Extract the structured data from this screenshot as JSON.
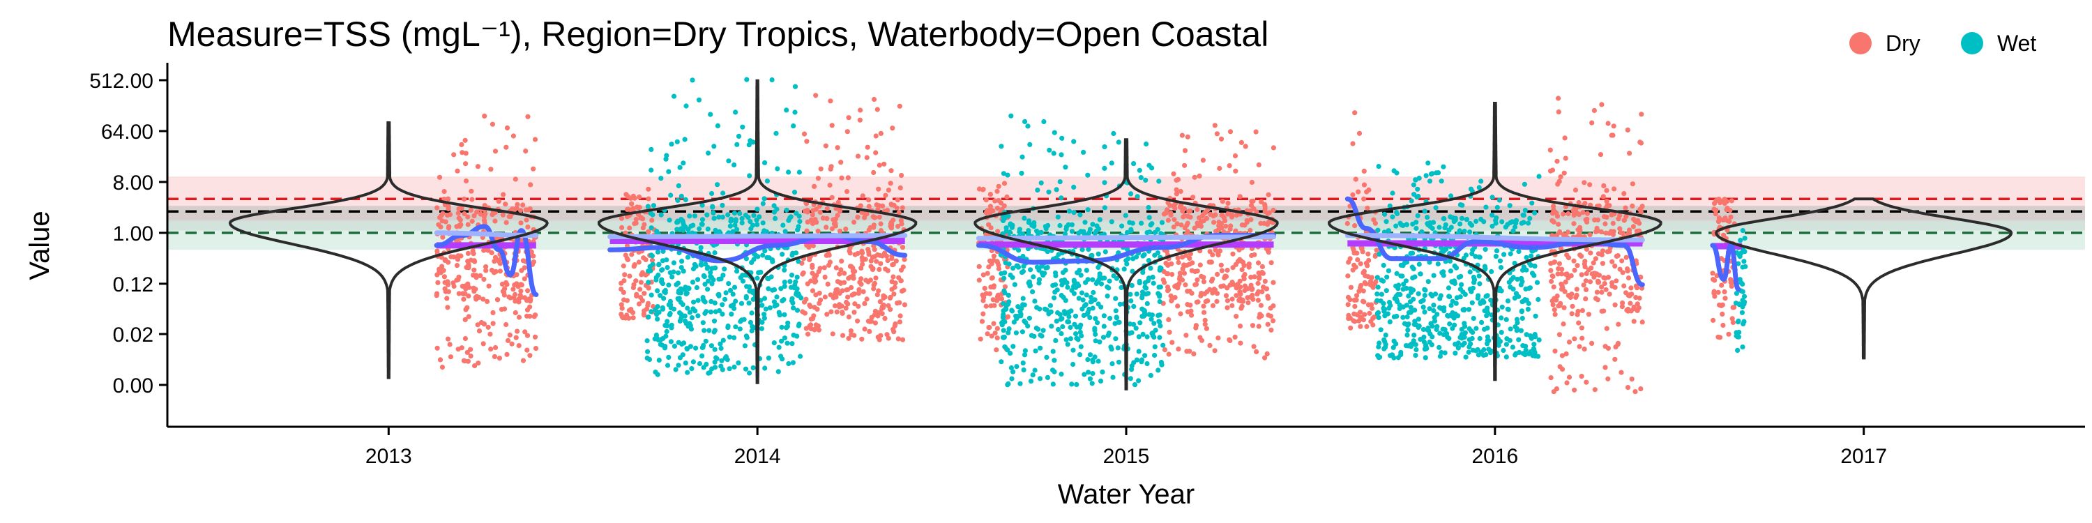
{
  "chart_data": {
    "type": "scatter",
    "title": "Measure=TSS (mgL⁻¹), Region=Dry Tropics, Waterbody=Open Coastal",
    "xlabel": "Water Year",
    "ylabel": "Value",
    "y_scale": "log2",
    "y_tick_values": [
      0.002,
      0.016,
      0.125,
      1,
      8,
      64,
      512
    ],
    "y_tick_labels": [
      "0.00",
      "0.02",
      "0.12",
      "1.00",
      "8.00",
      "64.00",
      "512.00"
    ],
    "x_ticks": [
      "2013",
      "2014",
      "2015",
      "2016",
      "2017"
    ],
    "xlim": [
      2012.4,
      2017.6
    ],
    "legend": {
      "placement": "top-right",
      "entries": [
        {
          "label": "Dry",
          "color": "#F8766D"
        },
        {
          "label": "Wet",
          "color": "#00BFC4"
        }
      ]
    },
    "grid": false,
    "reference_lines": [
      {
        "value": 4.0,
        "color": "#e31a1c",
        "style": "dashed",
        "band": [
          1.7,
          10.0
        ],
        "band_color": "#fbd3d3"
      },
      {
        "value": 2.4,
        "color": "#000000",
        "style": "dashed",
        "band": [
          1.1,
          3.0
        ],
        "band_color": "#c2c2c2"
      },
      {
        "value": 1.0,
        "color": "#1b6b3a",
        "style": "dashed",
        "band": [
          0.5,
          1.6
        ],
        "band_color": "#cfe9df"
      }
    ],
    "series": [
      {
        "name": "Dry",
        "color": "#F8766D",
        "clusters": [
          {
            "x0": 2013.13,
            "x1": 2013.4,
            "y_min": 0.004,
            "y_max": 150,
            "core_min": 0.06,
            "core_max": 3.0
          },
          {
            "x0": 2013.63,
            "x1": 2013.72,
            "y_min": 0.03,
            "y_max": 6,
            "core_min": 0.05,
            "core_max": 2.5
          },
          {
            "x0": 2014.12,
            "x1": 2014.4,
            "y_min": 0.012,
            "y_max": 300,
            "core_min": 0.05,
            "core_max": 3.0
          },
          {
            "x0": 2014.6,
            "x1": 2014.68,
            "y_min": 0.008,
            "y_max": 8,
            "core_min": 0.05,
            "core_max": 2.5
          },
          {
            "x0": 2015.1,
            "x1": 2015.4,
            "y_min": 0.006,
            "y_max": 100,
            "core_min": 0.05,
            "core_max": 3.0
          },
          {
            "x0": 2015.6,
            "x1": 2015.68,
            "y_min": 0.02,
            "y_max": 380,
            "core_min": 0.04,
            "core_max": 3.0
          },
          {
            "x0": 2016.15,
            "x1": 2016.4,
            "y_min": 0.0015,
            "y_max": 350,
            "core_min": 0.04,
            "core_max": 3.0
          },
          {
            "x0": 2016.59,
            "x1": 2016.65,
            "y_min": 0.01,
            "y_max": 4,
            "core_min": 0.05,
            "core_max": 2.5
          }
        ]
      },
      {
        "name": "Wet",
        "color": "#00BFC4",
        "clusters": [
          {
            "x0": 2013.7,
            "x1": 2014.12,
            "y_min": 0.003,
            "y_max": 600,
            "core_min": 0.02,
            "core_max": 2.2
          },
          {
            "x0": 2014.66,
            "x1": 2015.1,
            "y_min": 0.002,
            "y_max": 120,
            "core_min": 0.015,
            "core_max": 1.5
          },
          {
            "x0": 2015.68,
            "x1": 2016.12,
            "y_min": 0.006,
            "y_max": 20,
            "core_min": 0.015,
            "core_max": 1.8
          },
          {
            "x0": 2016.65,
            "x1": 2016.68,
            "y_min": 0.008,
            "y_max": 1.5,
            "core_min": 0.02,
            "core_max": 0.8
          }
        ]
      }
    ],
    "violins": [
      {
        "year": 2013,
        "peak": 1.5,
        "width": 0.43,
        "y_min": 0.0027,
        "y_max": 90
      },
      {
        "year": 2014,
        "peak": 1.5,
        "width": 0.43,
        "y_min": 0.0022,
        "y_max": 500
      },
      {
        "year": 2015,
        "peak": 1.5,
        "width": 0.41,
        "y_min": 0.0017,
        "y_max": 45
      },
      {
        "year": 2016,
        "peak": 1.5,
        "width": 0.45,
        "y_min": 0.0025,
        "y_max": 200
      },
      {
        "year": 2017,
        "peak": 1.0,
        "width": 0.4,
        "y_min": 0.006,
        "y_max": 4.0
      }
    ],
    "medians": [
      {
        "x0": 2013.13,
        "x1": 2013.4,
        "y": 0.6
      },
      {
        "x0": 2013.6,
        "x1": 2014.4,
        "y": 0.72
      },
      {
        "x0": 2014.6,
        "x1": 2015.4,
        "y": 0.62
      },
      {
        "x0": 2015.6,
        "x1": 2016.4,
        "y": 0.65
      },
      {
        "x0": 2016.59,
        "x1": 2016.67,
        "y": 0.58
      }
    ],
    "trend_lines": [
      {
        "color": "#4a66ff",
        "points": [
          [
            2013.13,
            0.6
          ],
          [
            2013.2,
            0.9
          ],
          [
            2013.26,
            1.3
          ],
          [
            2013.3,
            0.5
          ],
          [
            2013.33,
            0.18
          ],
          [
            2013.36,
            1.1
          ],
          [
            2013.4,
            0.08
          ]
        ]
      },
      {
        "color": "#4a66ff",
        "points": [
          [
            2013.6,
            0.5
          ],
          [
            2013.75,
            0.55
          ],
          [
            2013.9,
            0.32
          ],
          [
            2014.05,
            0.6
          ],
          [
            2014.2,
            0.9
          ],
          [
            2014.3,
            0.7
          ],
          [
            2014.4,
            0.4
          ]
        ]
      },
      {
        "color": "#4a66ff",
        "points": [
          [
            2014.6,
            0.6
          ],
          [
            2014.75,
            0.3
          ],
          [
            2014.9,
            0.32
          ],
          [
            2015.1,
            0.55
          ],
          [
            2015.25,
            0.9
          ],
          [
            2015.4,
            0.9
          ]
        ]
      },
      {
        "color": "#4a66ff",
        "points": [
          [
            2015.6,
            4.0
          ],
          [
            2015.65,
            1.2
          ],
          [
            2015.72,
            0.35
          ],
          [
            2015.85,
            0.35
          ],
          [
            2015.95,
            0.7
          ],
          [
            2016.1,
            0.55
          ],
          [
            2016.25,
            0.7
          ],
          [
            2016.35,
            0.6
          ],
          [
            2016.4,
            0.12
          ]
        ]
      },
      {
        "color": "#4a66ff",
        "points": [
          [
            2016.59,
            0.6
          ],
          [
            2016.62,
            0.15
          ],
          [
            2016.64,
            0.6
          ],
          [
            2016.66,
            0.1
          ]
        ]
      },
      {
        "color": "#9fb2ff",
        "points": [
          [
            2013.13,
            1.0
          ],
          [
            2013.4,
            0.9
          ]
        ]
      },
      {
        "color": "#9fb2ff",
        "points": [
          [
            2013.6,
            0.85
          ],
          [
            2014.4,
            0.9
          ]
        ]
      },
      {
        "color": "#9fb2ff",
        "points": [
          [
            2014.6,
            0.8
          ],
          [
            2015.4,
            0.85
          ]
        ]
      },
      {
        "color": "#9fb2ff",
        "points": [
          [
            2015.6,
            0.9
          ],
          [
            2016.4,
            0.75
          ]
        ]
      }
    ],
    "median_color": "#b43cff"
  }
}
